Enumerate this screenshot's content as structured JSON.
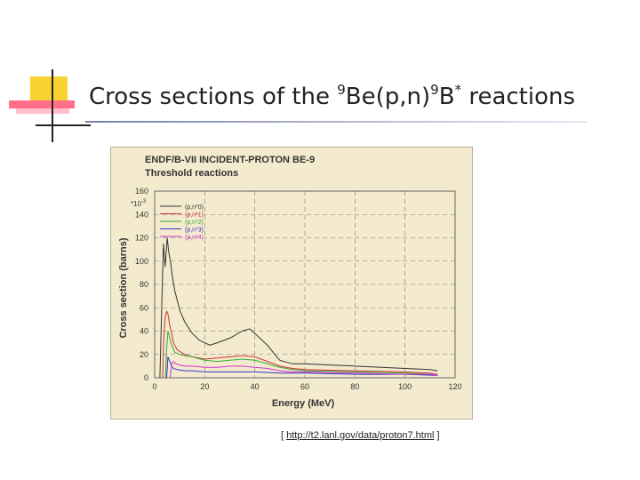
{
  "slide": {
    "title_prefix": "Cross sections of the ",
    "sup1": "9",
    "title_mid1": "Be(p,n)",
    "sup2": "9",
    "title_mid2": "B",
    "sup3": "*",
    "title_suffix": " reactions"
  },
  "source": {
    "open": "[ ",
    "link": "http://t2.lanl.gov/data/proton7.html",
    "close": " ]"
  },
  "colors": {
    "panel_bg": "#f4ebce",
    "axis": "#555555"
  },
  "chart_data": {
    "type": "line",
    "title": "ENDF/B-VII INCIDENT-PROTON BE-9",
    "subtitle": "Threshold reactions",
    "xlabel": "Energy (MeV)",
    "ylabel": "Cross section (barns)",
    "y_multiplier_label": "*10",
    "y_multiplier_exp": "-3",
    "xlim": [
      0,
      120
    ],
    "ylim": [
      0,
      160
    ],
    "xticks": [
      0,
      20,
      40,
      60,
      80,
      100,
      120
    ],
    "yticks": [
      0,
      20,
      40,
      60,
      80,
      100,
      120,
      140,
      160
    ],
    "grid": true,
    "legend_position": "top-left",
    "series": [
      {
        "name": "(p,n*0)",
        "color": "#333333",
        "x": [
          2.1,
          2.8,
          3.5,
          4.2,
          5.0,
          5.6,
          6.3,
          7.0,
          8.0,
          10,
          12,
          15,
          18,
          20,
          22,
          25,
          30,
          35,
          38,
          40,
          45,
          48,
          50,
          55,
          60,
          80,
          100,
          110,
          113
        ],
        "y": [
          0,
          60,
          115,
          95,
          120,
          108,
          100,
          88,
          75,
          58,
          48,
          38,
          32,
          30,
          28,
          30,
          34,
          40,
          42,
          38,
          28,
          20,
          15,
          12,
          12,
          10,
          8,
          7,
          6
        ]
      },
      {
        "name": "(p,n*1)",
        "color": "#cc3333",
        "x": [
          3.2,
          3.6,
          4.2,
          4.8,
          5.3,
          6.0,
          6.8,
          7.5,
          9,
          12,
          15,
          20,
          25,
          30,
          35,
          40,
          45,
          50,
          55,
          60,
          80,
          100,
          110,
          113
        ],
        "y": [
          0,
          30,
          52,
          57,
          55,
          45,
          38,
          30,
          24,
          20,
          18,
          16,
          17,
          18,
          19,
          18,
          14,
          10,
          8,
          7,
          6,
          5,
          4,
          3
        ]
      },
      {
        "name": "(p,n*2)",
        "color": "#33aa33",
        "x": [
          4.3,
          4.8,
          5.3,
          5.8,
          6.5,
          7.2,
          8.0,
          10,
          12,
          15,
          20,
          25,
          30,
          35,
          40,
          45,
          50,
          55,
          60,
          80,
          100,
          110,
          113
        ],
        "y": [
          0,
          25,
          40,
          36,
          30,
          26,
          22,
          20,
          19,
          18,
          15,
          14,
          15,
          16,
          15,
          12,
          9,
          7,
          6,
          5,
          4,
          3,
          2
        ]
      },
      {
        "name": "(p,n*3)",
        "color": "#3333cc",
        "x": [
          4.8,
          5.3,
          6.0,
          6.8,
          7.5,
          9,
          12,
          15,
          20,
          25,
          30,
          40,
          50,
          60,
          80,
          100,
          113
        ],
        "y": [
          0,
          18,
          14,
          10,
          8,
          7,
          6,
          6,
          5,
          5,
          5,
          5,
          4,
          4,
          3,
          3,
          2
        ]
      },
      {
        "name": "(p,n*4)",
        "color": "#cc33cc",
        "x": [
          6.2,
          6.8,
          7.5,
          8.5,
          10,
          12,
          15,
          20,
          25,
          30,
          35,
          40,
          45,
          50,
          55,
          60,
          80,
          100,
          110,
          113
        ],
        "y": [
          0,
          12,
          14,
          12,
          11,
          10,
          10,
          9,
          9,
          10,
          10,
          9,
          8,
          6,
          5,
          5,
          4,
          3,
          3,
          2
        ]
      }
    ]
  }
}
